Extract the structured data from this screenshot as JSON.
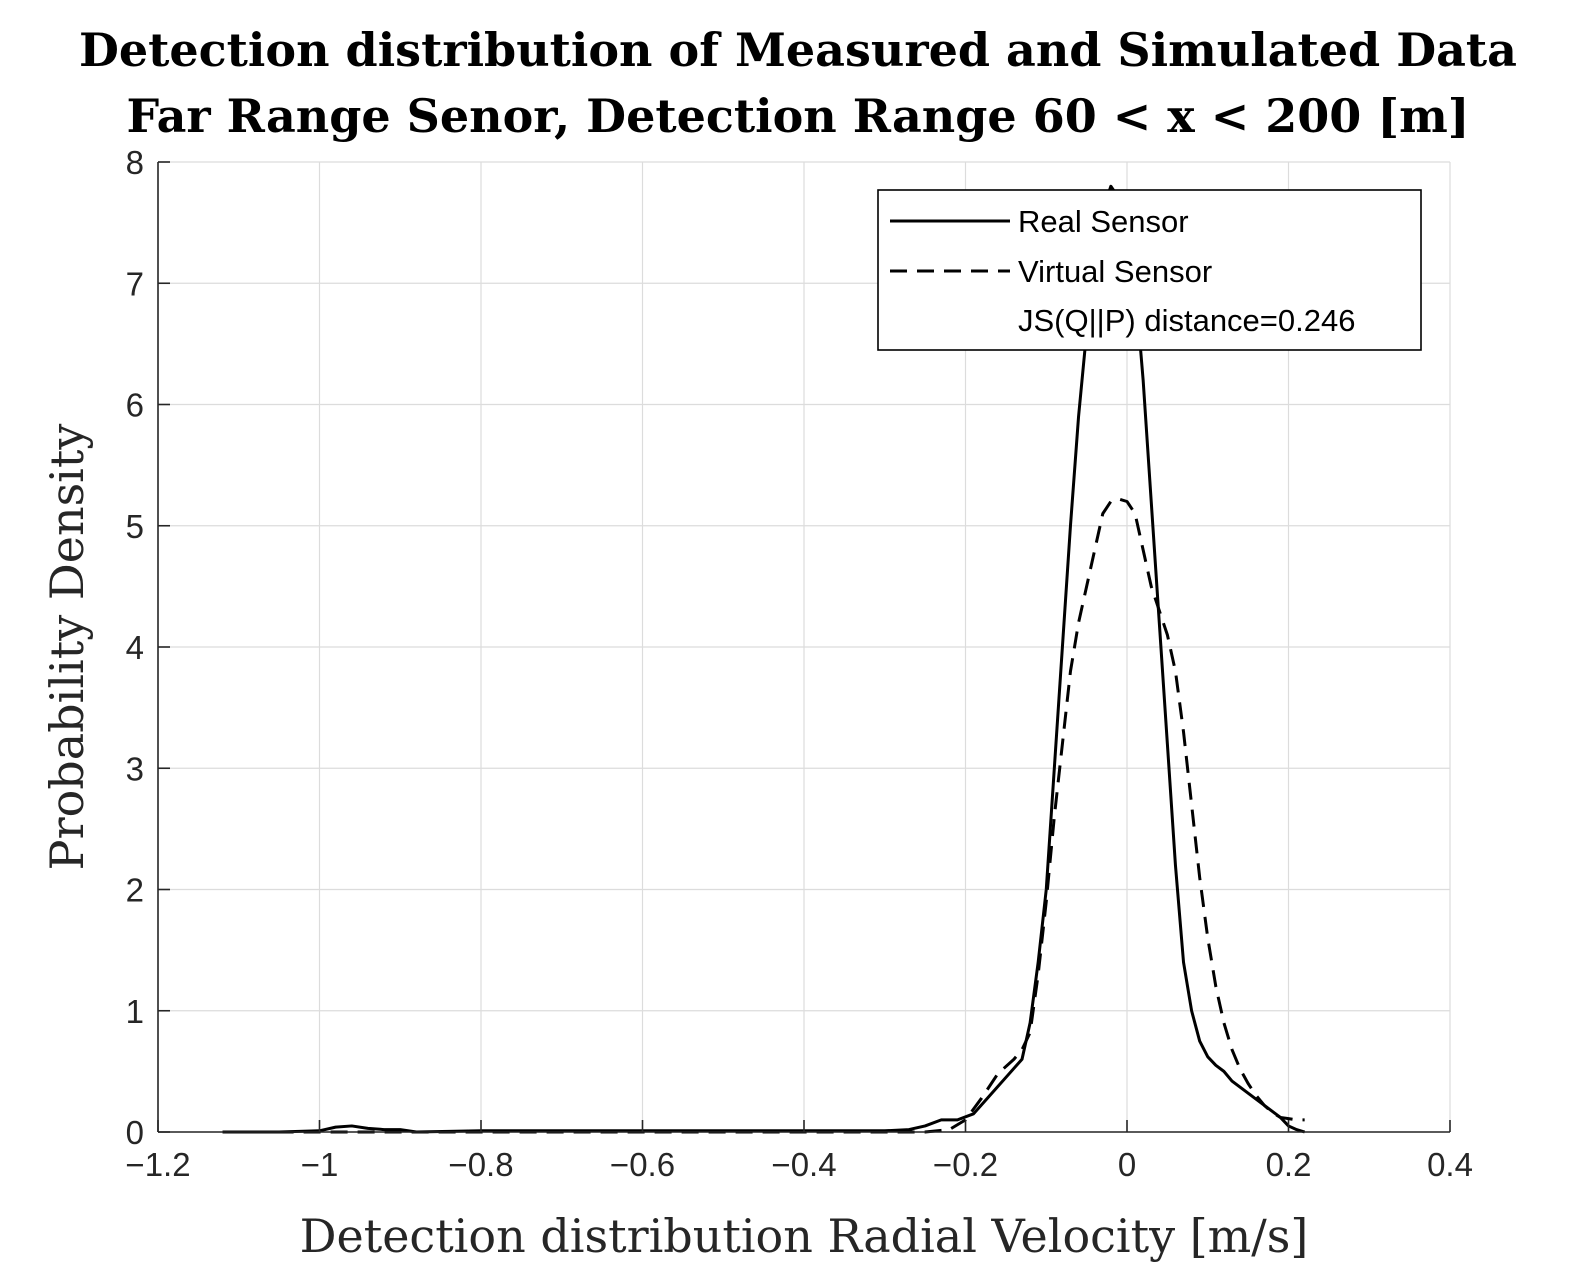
{
  "chart_data": {
    "type": "line",
    "title": "Detection distribution of Measured and Simulated Data",
    "subtitle": "Far Range Senor, Detection Range 60 < x < 200 [m]",
    "xlabel": "Detection distribution Radial Velocity [m/s]",
    "ylabel": "Probability Density",
    "xlim": [
      -1.2,
      0.4
    ],
    "ylim": [
      0,
      8
    ],
    "xticks": [
      -1.2,
      -1,
      -0.8,
      -0.6,
      -0.4,
      -0.2,
      0,
      0.2,
      0.4
    ],
    "xtick_labels": [
      "−1.2",
      "−1",
      "−0.8",
      "−0.6",
      "−0.4",
      "−0.2",
      "0",
      "0.2",
      "0.4"
    ],
    "yticks": [
      0,
      1,
      2,
      3,
      4,
      5,
      6,
      7,
      8
    ],
    "ytick_labels": [
      "0",
      "1",
      "2",
      "3",
      "4",
      "5",
      "6",
      "7",
      "8"
    ],
    "grid": true,
    "legend_position": "top-right",
    "annotation": "JS(Q||P) distance=0.246",
    "series": [
      {
        "name": "Real Sensor",
        "style": "solid",
        "color": "#000000",
        "x": [
          -1.12,
          -1.05,
          -1.0,
          -0.98,
          -0.96,
          -0.94,
          -0.92,
          -0.9,
          -0.88,
          -0.8,
          -0.6,
          -0.4,
          -0.3,
          -0.27,
          -0.25,
          -0.23,
          -0.21,
          -0.19,
          -0.17,
          -0.15,
          -0.13,
          -0.12,
          -0.11,
          -0.1,
          -0.09,
          -0.08,
          -0.07,
          -0.06,
          -0.05,
          -0.04,
          -0.03,
          -0.02,
          -0.01,
          0.0,
          0.01,
          0.02,
          0.03,
          0.04,
          0.05,
          0.06,
          0.07,
          0.08,
          0.09,
          0.1,
          0.11,
          0.12,
          0.13,
          0.15,
          0.17,
          0.19,
          0.2,
          0.21,
          0.22
        ],
        "y": [
          0.0,
          0.0,
          0.01,
          0.04,
          0.05,
          0.03,
          0.02,
          0.02,
          0.0,
          0.01,
          0.01,
          0.01,
          0.01,
          0.02,
          0.05,
          0.1,
          0.1,
          0.15,
          0.3,
          0.45,
          0.6,
          0.9,
          1.4,
          2.0,
          3.0,
          4.0,
          5.0,
          5.9,
          6.6,
          7.2,
          7.6,
          7.8,
          7.7,
          7.6,
          7.0,
          6.2,
          5.2,
          4.2,
          3.2,
          2.2,
          1.4,
          1.0,
          0.75,
          0.62,
          0.55,
          0.5,
          0.42,
          0.32,
          0.22,
          0.12,
          0.05,
          0.02,
          0.0
        ]
      },
      {
        "name": "Virtual Sensor",
        "style": "dashed",
        "color": "#000000",
        "x": [
          -1.12,
          -1.0,
          -0.9,
          -0.8,
          -0.6,
          -0.4,
          -0.3,
          -0.25,
          -0.22,
          -0.2,
          -0.18,
          -0.16,
          -0.14,
          -0.13,
          -0.12,
          -0.11,
          -0.1,
          -0.09,
          -0.08,
          -0.07,
          -0.06,
          -0.05,
          -0.04,
          -0.03,
          -0.02,
          -0.01,
          0.0,
          0.01,
          0.02,
          0.03,
          0.04,
          0.05,
          0.06,
          0.07,
          0.08,
          0.09,
          0.1,
          0.11,
          0.12,
          0.13,
          0.14,
          0.15,
          0.16,
          0.17,
          0.18,
          0.19,
          0.2,
          0.21,
          0.22
        ],
        "y": [
          0.0,
          0.0,
          0.0,
          0.0,
          0.0,
          0.0,
          0.0,
          0.0,
          0.02,
          0.1,
          0.28,
          0.48,
          0.6,
          0.68,
          0.82,
          1.3,
          1.9,
          2.6,
          3.2,
          3.8,
          4.2,
          4.5,
          4.8,
          5.1,
          5.2,
          5.22,
          5.2,
          5.1,
          4.8,
          4.5,
          4.3,
          4.1,
          3.8,
          3.3,
          2.7,
          2.1,
          1.6,
          1.2,
          0.9,
          0.68,
          0.52,
          0.4,
          0.3,
          0.22,
          0.16,
          0.12,
          0.11,
          0.1,
          0.1
        ]
      }
    ]
  }
}
